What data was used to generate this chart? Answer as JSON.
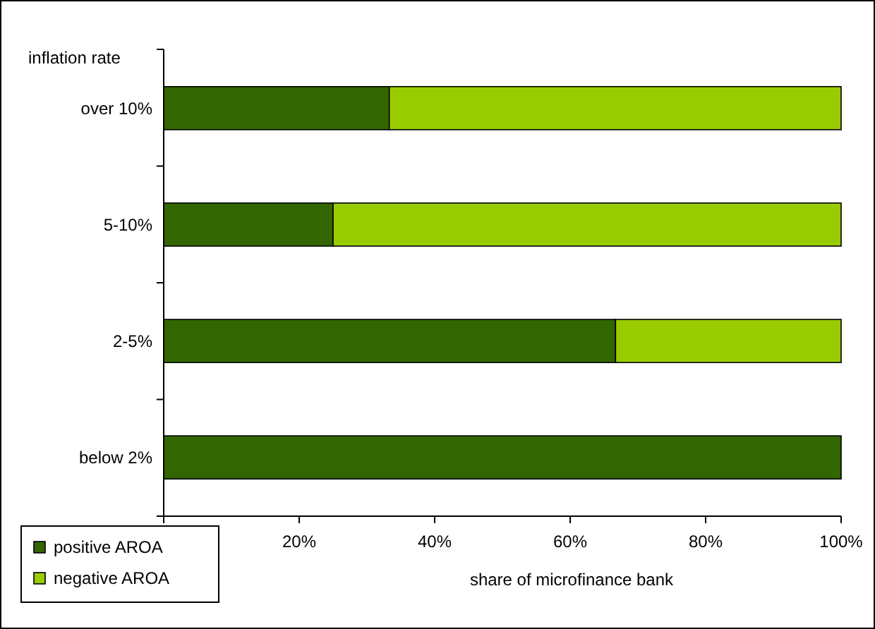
{
  "chart_data": {
    "type": "bar",
    "orientation": "horizontal",
    "stacked": true,
    "categories": [
      "over 10%",
      "5-10%",
      "2-5%",
      "below 2%"
    ],
    "series": [
      {
        "name": "positive AROA",
        "color": "#336600",
        "values": [
          33.3,
          25,
          66.7,
          100
        ]
      },
      {
        "name": "negative AROA",
        "color": "#99cc00",
        "values": [
          66.7,
          75,
          33.3,
          0
        ]
      }
    ],
    "xlim": [
      0,
      100
    ],
    "xticks": [
      {
        "value": 0,
        "label": null
      },
      {
        "value": 20,
        "label": "20%"
      },
      {
        "value": 40,
        "label": "40%"
      },
      {
        "value": 60,
        "label": "60%"
      },
      {
        "value": 80,
        "label": "80%"
      },
      {
        "value": 100,
        "label": "100%"
      }
    ],
    "xlabel": "share of microfinance bank",
    "ylabel": "inflation rate",
    "legend": "bottom left",
    "grid": false
  }
}
